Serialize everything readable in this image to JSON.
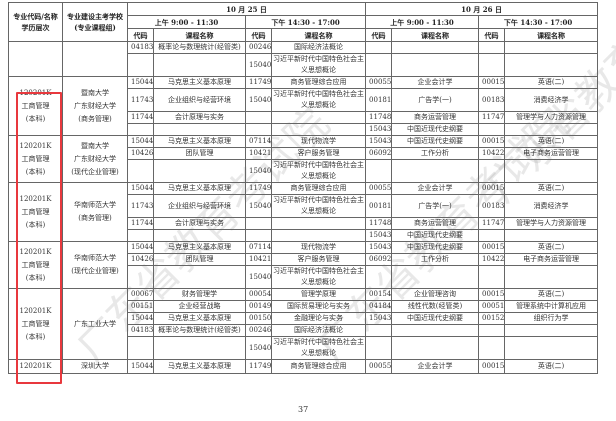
{
  "watermark": "广东省教育考试院",
  "header": {
    "col_major": [
      "专业代码/名称",
      "学历层次"
    ],
    "col_school": [
      "专业建设主考学校",
      "(专业课程组)"
    ],
    "day1": "10 月 25 日",
    "day2": "10 月 26 日",
    "am": "上午 9:00 - 11:30",
    "pm": "下午 14:30 - 17:00",
    "code": "代码",
    "course": "课程名称"
  },
  "groups": [
    {
      "major": [],
      "school": [],
      "rows": [
        [
          [
            "04183",
            "概率论与数理统计(经管类)"
          ],
          [
            "00246",
            "国际经济法概论"
          ],
          [
            "",
            ""
          ],
          [
            "",
            ""
          ]
        ],
        [
          [
            "",
            ""
          ],
          [
            "15040",
            "习近平新时代中国特色社会主义思想概论"
          ],
          [
            "",
            ""
          ],
          [
            "",
            ""
          ]
        ]
      ]
    },
    {
      "major": [
        "120201K",
        "工商管理",
        "(本科)"
      ],
      "school": [
        "暨南大学",
        "广东财经大学",
        "(商务管理)"
      ],
      "rows": [
        [
          [
            "15044",
            "马克思主义基本原理"
          ],
          [
            "11749",
            "商务管理综合应用"
          ],
          [
            "00055",
            "企业会计学"
          ],
          [
            "00015",
            "英语(二)"
          ]
        ],
        [
          [
            "11743",
            "企业组织与经营环境"
          ],
          [
            "15040",
            "习近平新时代中国特色社会主义思想概论"
          ],
          [
            "00181",
            "广告学(一)"
          ],
          [
            "00183",
            "消费经济学"
          ]
        ],
        [
          [
            "11744",
            "会计原理与实务"
          ],
          [
            "",
            ""
          ],
          [
            "11748",
            "商务运营管理"
          ],
          [
            "11747",
            "管理学与人力资源管理"
          ]
        ],
        [
          [
            "",
            ""
          ],
          [
            "",
            ""
          ],
          [
            "15043",
            "中国近现代史纲要"
          ],
          [
            "",
            ""
          ]
        ]
      ]
    },
    {
      "major": [
        "120201K",
        "工商管理",
        "(本科)"
      ],
      "school": [
        "暨南大学",
        "广东财经大学",
        "(现代企业管理)"
      ],
      "rows": [
        [
          [
            "15044",
            "马克思主义基本原理"
          ],
          [
            "07114",
            "现代物流学"
          ],
          [
            "15043",
            "中国近现代史纲要"
          ],
          [
            "00015",
            "英语(二)"
          ]
        ],
        [
          [
            "10426",
            "团队管理"
          ],
          [
            "10421",
            "客户服务管理"
          ],
          [
            "06092",
            "工作分析"
          ],
          [
            "10422",
            "电子商务运营管理"
          ]
        ],
        [
          [
            "",
            ""
          ],
          [
            "15040",
            "习近平新时代中国特色社会主义思想概论"
          ],
          [
            "",
            ""
          ],
          [
            "",
            ""
          ]
        ]
      ]
    },
    {
      "major": [
        "120201K",
        "工商管理",
        "(本科)"
      ],
      "school": [
        "华南师范大学",
        "(商务管理)"
      ],
      "rows": [
        [
          [
            "15044",
            "马克思主义基本原理"
          ],
          [
            "11749",
            "商务管理综合应用"
          ],
          [
            "00055",
            "企业会计学"
          ],
          [
            "00015",
            "英语(二)"
          ]
        ],
        [
          [
            "11743",
            "企业组织与经营环境"
          ],
          [
            "15040",
            "习近平新时代中国特色社会主义思想概论"
          ],
          [
            "00181",
            "广告学(一)"
          ],
          [
            "00183",
            "消费经济学"
          ]
        ],
        [
          [
            "11744",
            "会计原理与实务"
          ],
          [
            "",
            ""
          ],
          [
            "11748",
            "商务运营管理"
          ],
          [
            "11747",
            "管理学与人力资源管理"
          ]
        ],
        [
          [
            "",
            ""
          ],
          [
            "",
            ""
          ],
          [
            "15043",
            "中国近现代史纲要"
          ],
          [
            "",
            ""
          ]
        ]
      ]
    },
    {
      "major": [
        "120201K",
        "工商管理",
        "(本科)"
      ],
      "school": [
        "华南师范大学",
        "(现代企业管理)"
      ],
      "rows": [
        [
          [
            "15044",
            "马克思主义基本原理"
          ],
          [
            "07114",
            "现代物流学"
          ],
          [
            "15043",
            "中国近现代史纲要"
          ],
          [
            "00015",
            "英语(二)"
          ]
        ],
        [
          [
            "10426",
            "团队管理"
          ],
          [
            "10421",
            "客户服务管理"
          ],
          [
            "06092",
            "工作分析"
          ],
          [
            "10422",
            "电子商务运营管理"
          ]
        ],
        [
          [
            "",
            ""
          ],
          [
            "15040",
            "习近平新时代中国特色社会主义思想概论"
          ],
          [
            "",
            ""
          ],
          [
            "",
            ""
          ]
        ]
      ]
    },
    {
      "major": [
        "120201K",
        "工商管理",
        "(本科)"
      ],
      "school": [
        "广东工业大学"
      ],
      "rows": [
        [
          [
            "00067",
            "财务管理学"
          ],
          [
            "00054",
            "管理学原理"
          ],
          [
            "00154",
            "企业管理咨询"
          ],
          [
            "00015",
            "英语(二)"
          ]
        ],
        [
          [
            "00151",
            "企业经营战略"
          ],
          [
            "00149",
            "国际贸易理论与实务"
          ],
          [
            "04184",
            "线性代数(经管类)"
          ],
          [
            "00051",
            "管理系统中计算机应用"
          ]
        ],
        [
          [
            "15044",
            "马克思主义基本原理"
          ],
          [
            "00150",
            "金融理论与实务"
          ],
          [
            "15043",
            "中国近现代史纲要"
          ],
          [
            "00152",
            "组织行为学"
          ]
        ],
        [
          [
            "04183",
            "概率论与数理统计(经管类)"
          ],
          [
            "00246",
            "国际经济法概论"
          ],
          [
            "",
            ""
          ],
          [
            "",
            ""
          ]
        ],
        [
          [
            "",
            ""
          ],
          [
            "15040",
            "习近平新时代中国特色社会主义思想概论"
          ],
          [
            "",
            ""
          ],
          [
            "",
            ""
          ]
        ]
      ]
    },
    {
      "major": [
        "120201K"
      ],
      "school": [
        "深圳大学"
      ],
      "rows": [
        [
          [
            "15044",
            "马克思主义基本原理"
          ],
          [
            "11749",
            "商务管理综合应用"
          ],
          [
            "00055",
            "企业会计学"
          ],
          [
            "00015",
            "英语(二)"
          ]
        ]
      ]
    }
  ],
  "highlight_color": "#e8383d",
  "page_number": "37"
}
